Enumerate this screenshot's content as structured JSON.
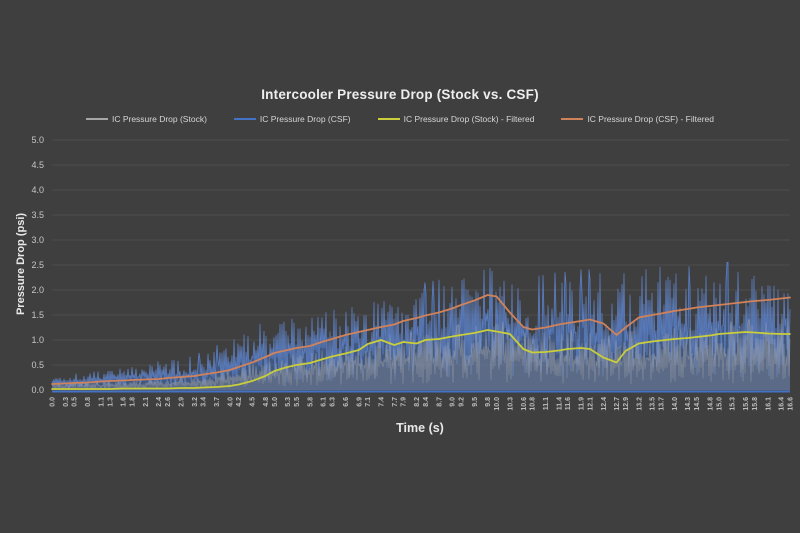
{
  "window": {
    "background": "#3f3f3f"
  },
  "chart_data": {
    "type": "line",
    "title": "Intercooler Pressure Drop (Stock vs. CSF)",
    "xlabel": "Time (s)",
    "ylabel": "Pressure Drop (psi)",
    "xlim": [
      0,
      16.6
    ],
    "ylim": [
      0,
      5.0
    ],
    "ytick_step": 0.5,
    "grid": true,
    "legend_position": "top",
    "colors": {
      "background": "#3f3f3f",
      "gridline": "#4d4d4d",
      "axis_line": "#4472c4",
      "title_text": "#eeeeee",
      "tick_text": "#c4c4c4",
      "stock": "#a6a6a6",
      "csf": "#4472c4",
      "stock_filtered": "#c9ce3a",
      "csf_filtered": "#d0825a"
    },
    "x": [
      0.0,
      0.3,
      0.5,
      0.8,
      1.1,
      1.3,
      1.6,
      1.8,
      2.1,
      2.4,
      2.6,
      2.9,
      3.2,
      3.4,
      3.7,
      4.0,
      4.2,
      4.5,
      4.8,
      5.0,
      5.3,
      5.5,
      5.8,
      6.1,
      6.3,
      6.6,
      6.9,
      7.1,
      7.4,
      7.7,
      7.9,
      8.2,
      8.4,
      8.7,
      9.0,
      9.2,
      9.5,
      9.8,
      10.0,
      10.3,
      10.6,
      10.8,
      11.1,
      11.4,
      11.6,
      11.9,
      12.1,
      12.4,
      12.7,
      12.9,
      13.2,
      13.5,
      13.7,
      14.0,
      14.3,
      14.5,
      14.8,
      15.0,
      15.3,
      15.6,
      15.8,
      16.1,
      16.4,
      16.6
    ],
    "yticks": [
      "0.0",
      "0.5",
      "1.0",
      "1.5",
      "2.0",
      "2.5",
      "3.0",
      "3.5",
      "4.0",
      "4.5",
      "5.0"
    ],
    "series": [
      {
        "name": "IC Pressure Drop (Stock)",
        "color": "#a6a6a6",
        "style": "noisy",
        "envelope_top": [
          0.15,
          0.15,
          0.15,
          0.15,
          0.18,
          0.18,
          0.2,
          0.2,
          0.2,
          0.22,
          0.22,
          0.25,
          0.28,
          0.3,
          0.35,
          0.4,
          0.45,
          0.5,
          0.55,
          0.6,
          0.65,
          0.7,
          0.75,
          0.8,
          0.85,
          0.9,
          0.95,
          1.0,
          1.05,
          1.05,
          1.1,
          1.1,
          1.15,
          1.15,
          1.2,
          1.25,
          1.3,
          1.4,
          1.35,
          1.25,
          1.1,
          1.05,
          1.1,
          1.1,
          1.15,
          1.15,
          1.15,
          1.05,
          1.0,
          1.1,
          1.15,
          1.2,
          1.2,
          1.25,
          1.25,
          1.25,
          1.3,
          1.3,
          1.3,
          1.35,
          1.35,
          1.35,
          1.35,
          1.35
        ],
        "envelope_bottom": 0.0
      },
      {
        "name": "IC Pressure Drop (CSF)",
        "color": "#4472c4",
        "style": "noisy",
        "envelope_top": [
          0.3,
          0.32,
          0.35,
          0.35,
          0.4,
          0.45,
          0.45,
          0.5,
          0.5,
          0.55,
          0.55,
          0.6,
          0.65,
          0.75,
          0.85,
          1.0,
          1.1,
          1.2,
          1.3,
          1.35,
          1.4,
          1.45,
          1.5,
          1.6,
          1.65,
          1.7,
          1.75,
          1.8,
          1.85,
          1.9,
          1.95,
          2.0,
          2.05,
          2.1,
          2.15,
          2.25,
          2.4,
          2.6,
          2.45,
          2.2,
          2.1,
          2.15,
          2.2,
          2.25,
          2.25,
          2.3,
          2.3,
          2.2,
          2.1,
          2.25,
          2.3,
          2.3,
          2.35,
          2.35,
          2.35,
          2.4,
          2.4,
          2.4,
          2.45,
          2.45,
          2.45,
          2.45,
          2.5,
          2.5
        ],
        "envelope_bottom": 0.0
      },
      {
        "name": "IC Pressure Drop (Stock) - Filtered",
        "color": "#c9ce3a",
        "style": "smooth",
        "values": [
          0.02,
          0.02,
          0.02,
          0.02,
          0.02,
          0.02,
          0.03,
          0.03,
          0.03,
          0.03,
          0.03,
          0.04,
          0.04,
          0.05,
          0.06,
          0.08,
          0.11,
          0.18,
          0.28,
          0.38,
          0.46,
          0.5,
          0.54,
          0.62,
          0.67,
          0.73,
          0.8,
          0.92,
          1.0,
          0.9,
          0.96,
          0.93,
          1.0,
          1.02,
          1.07,
          1.1,
          1.14,
          1.2,
          1.17,
          1.12,
          0.82,
          0.75,
          0.76,
          0.79,
          0.82,
          0.84,
          0.82,
          0.65,
          0.55,
          0.78,
          0.93,
          0.97,
          0.99,
          1.02,
          1.04,
          1.06,
          1.09,
          1.12,
          1.14,
          1.16,
          1.15,
          1.13,
          1.12,
          1.12
        ]
      },
      {
        "name": "IC Pressure Drop (CSF) - Filtered",
        "color": "#d0825a",
        "style": "smooth",
        "values": [
          0.12,
          0.13,
          0.14,
          0.15,
          0.17,
          0.18,
          0.19,
          0.2,
          0.21,
          0.22,
          0.24,
          0.26,
          0.28,
          0.31,
          0.35,
          0.4,
          0.46,
          0.55,
          0.66,
          0.74,
          0.8,
          0.84,
          0.88,
          0.97,
          1.02,
          1.1,
          1.16,
          1.2,
          1.26,
          1.31,
          1.38,
          1.44,
          1.49,
          1.55,
          1.63,
          1.7,
          1.79,
          1.9,
          1.87,
          1.55,
          1.26,
          1.21,
          1.25,
          1.31,
          1.34,
          1.38,
          1.41,
          1.33,
          1.1,
          1.25,
          1.45,
          1.5,
          1.53,
          1.58,
          1.62,
          1.65,
          1.68,
          1.7,
          1.73,
          1.76,
          1.78,
          1.8,
          1.83,
          1.85
        ]
      }
    ]
  }
}
